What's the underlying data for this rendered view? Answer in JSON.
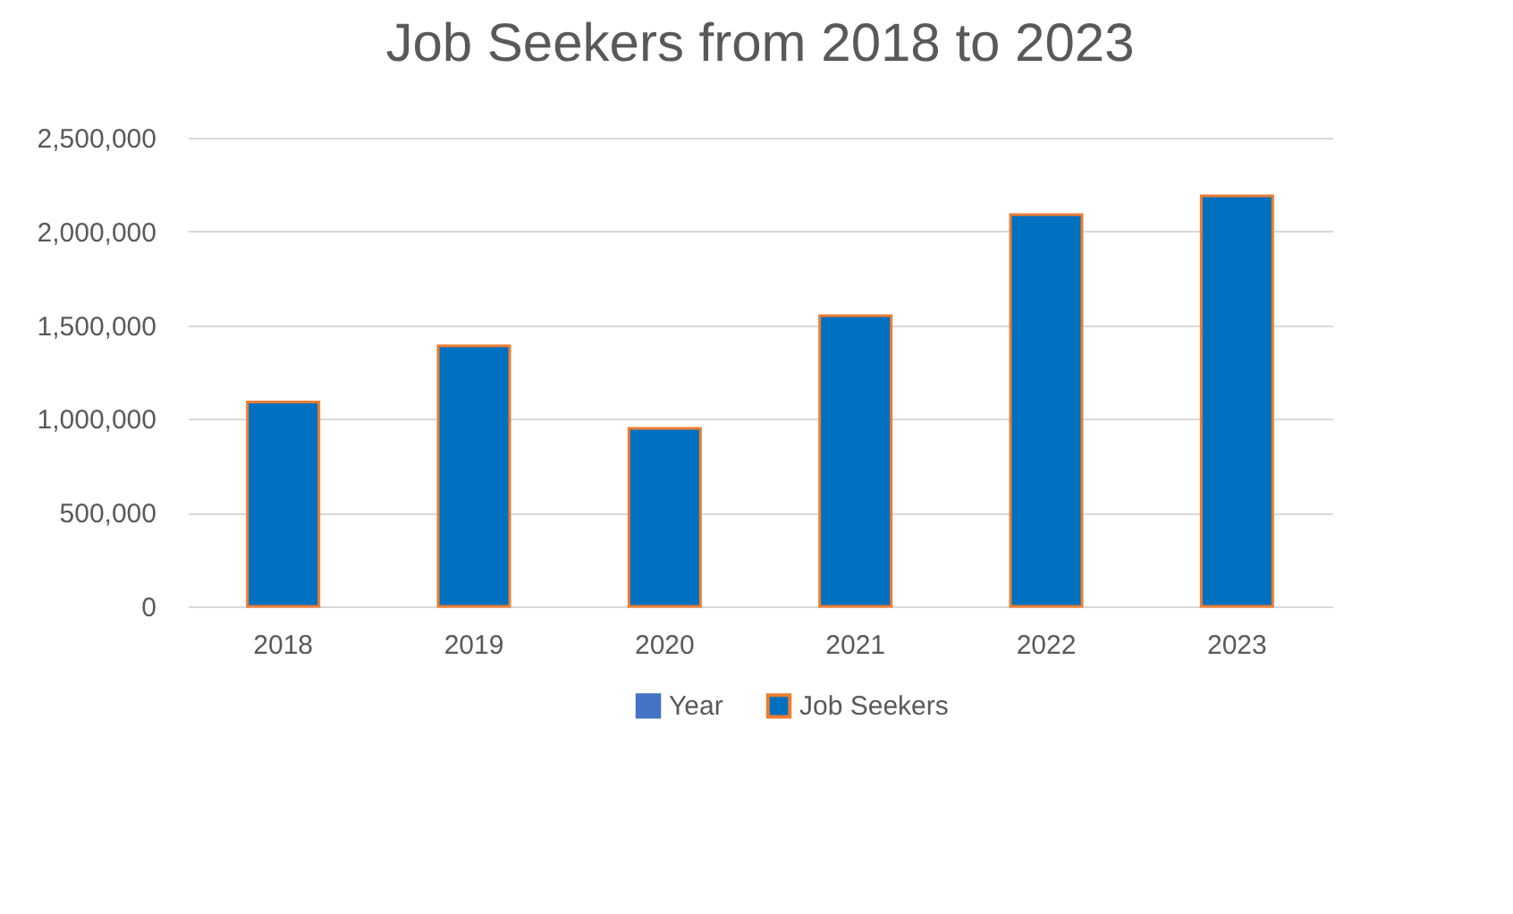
{
  "chart_data": {
    "type": "bar",
    "title": "Job Seekers from 2018 to 2023",
    "categories": [
      "2018",
      "2019",
      "2020",
      "2021",
      "2022",
      "2023"
    ],
    "series": [
      {
        "name": "Year",
        "color": "#4472c4",
        "values": [
          null,
          null,
          null,
          null,
          null,
          null
        ]
      },
      {
        "name": "Job Seekers",
        "color": "#0070c0",
        "values": [
          1090000,
          1390000,
          950000,
          1550000,
          2090000,
          2190000
        ]
      }
    ],
    "ylim": [
      0,
      2500000
    ],
    "yticks": [
      0,
      {
        "value": 500000,
        "label": "500,000"
      },
      {
        "value": 1000000,
        "label": "1,000,000"
      },
      {
        "value": 1500000,
        "label": "1,500,000"
      },
      {
        "value": 2000000,
        "label": "2,000,000"
      },
      {
        "value": 2500000,
        "label": "2,500,000"
      }
    ],
    "grid": "y",
    "legend": "bottom"
  }
}
